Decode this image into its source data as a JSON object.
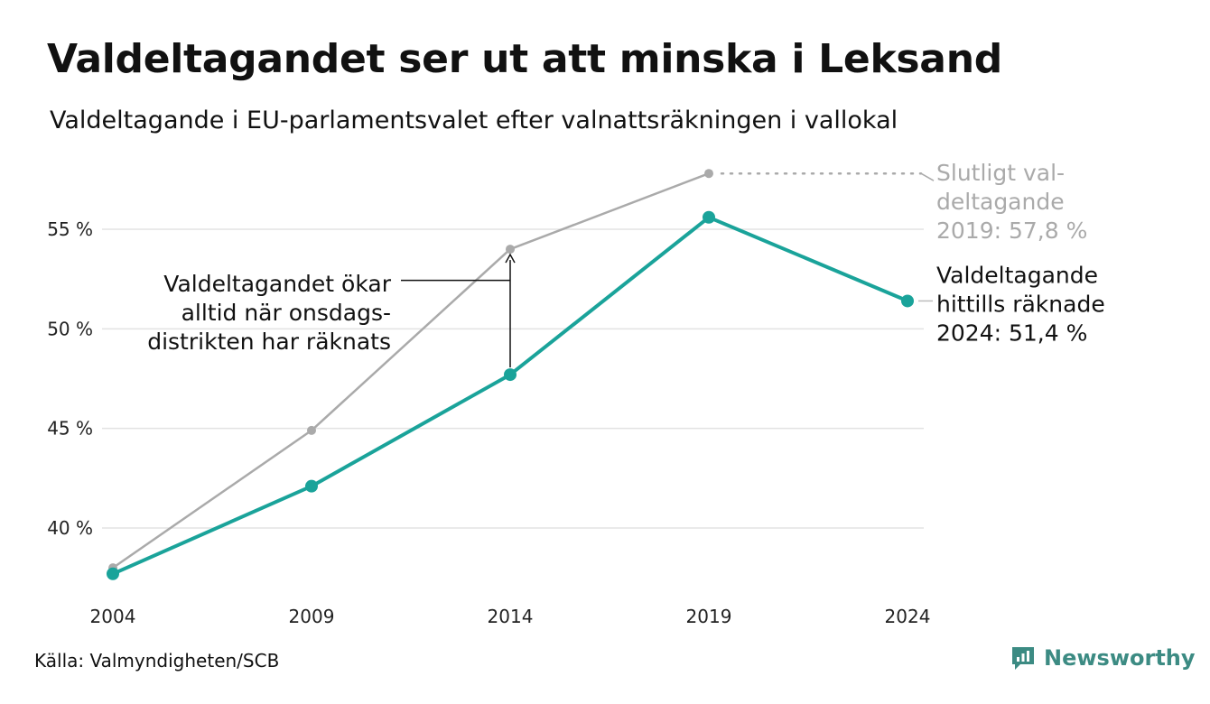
{
  "chart_data": {
    "type": "line",
    "title": "Valdeltagandet ser ut att minska i Leksand",
    "subtitle": "Valdeltagande i EU-parlamentsvalet efter valnattsräkningen i vallokal",
    "x": [
      "2004",
      "2009",
      "2014",
      "2019",
      "2024"
    ],
    "y_ticks": [
      40,
      45,
      50,
      55
    ],
    "y_tick_labels": [
      "40 %",
      "45 %",
      "50 %",
      "55 %"
    ],
    "ylim": [
      37.3,
      58.0
    ],
    "grid": true,
    "series": [
      {
        "key": "final",
        "color": "#aaaaaa",
        "values": [
          38.0,
          44.9,
          54.0,
          57.8,
          null
        ],
        "label_lines": [
          "Slutligt val-",
          "deltagande",
          "2019: 57,8 %"
        ]
      },
      {
        "key": "counted",
        "color": "#1aa39a",
        "values": [
          37.7,
          42.1,
          47.7,
          55.6,
          51.4
        ],
        "label_lines": [
          "Valdeltagande",
          "hittills räknade",
          "2024: 51,4 %"
        ]
      }
    ],
    "annotation": {
      "lines": [
        "Valdeltagandet ökar",
        "alltid när onsdags-",
        "distrikten har räknats"
      ],
      "x": "2014"
    }
  },
  "source": "Källa: Valmyndigheten/SCB",
  "logo": {
    "name": "Newsworthy",
    "icon": "newsworthy-logo-icon",
    "color": "#3c8b83"
  }
}
